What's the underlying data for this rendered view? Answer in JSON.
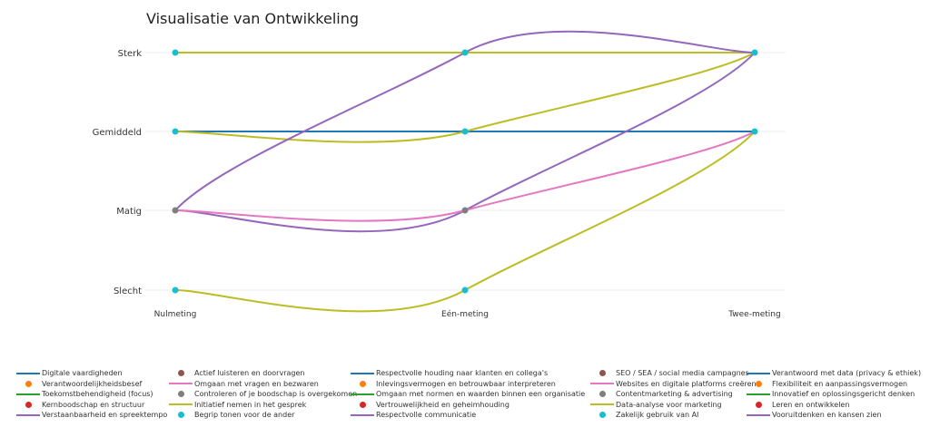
{
  "chart_data": {
    "type": "line",
    "title": "Visualisatie van Ontwikkeling",
    "categories": [
      "Nulmeting",
      "Eén-meting",
      "Twee-meting"
    ],
    "y_levels": [
      "Slecht",
      "Matig",
      "Gemiddeld",
      "Sterk"
    ],
    "grid": true,
    "legend_placement": "bottom",
    "lines": [
      {
        "color": "#1f77b4",
        "values": [
          "Gemiddeld",
          "Gemiddeld",
          "Gemiddeld"
        ]
      },
      {
        "color": "#bcbd22",
        "values": [
          "Sterk",
          "Sterk",
          "Sterk"
        ]
      },
      {
        "color": "#bcbd22",
        "values": [
          "Gemiddeld",
          "Gemiddeld",
          "Sterk"
        ]
      },
      {
        "color": "#bcbd22",
        "values": [
          "Slecht",
          "Slecht",
          "Gemiddeld"
        ]
      },
      {
        "color": "#9467bd",
        "values": [
          "Matig",
          "Sterk",
          "Sterk"
        ]
      },
      {
        "color": "#9467bd",
        "values": [
          "Matig",
          "Matig",
          "Sterk"
        ]
      },
      {
        "color": "#e377c2",
        "values": [
          "Matig",
          "Matig",
          "Gemiddeld"
        ]
      }
    ],
    "markers": [
      {
        "color": "#17becf",
        "x": "Nulmeting",
        "y": "Sterk"
      },
      {
        "color": "#17becf",
        "x": "Nulmeting",
        "y": "Gemiddeld"
      },
      {
        "color": "#7f7f7f",
        "x": "Nulmeting",
        "y": "Matig"
      },
      {
        "color": "#17becf",
        "x": "Nulmeting",
        "y": "Slecht"
      },
      {
        "color": "#17becf",
        "x": "Eén-meting",
        "y": "Sterk"
      },
      {
        "color": "#17becf",
        "x": "Eén-meting",
        "y": "Gemiddeld"
      },
      {
        "color": "#7f7f7f",
        "x": "Eén-meting",
        "y": "Matig"
      },
      {
        "color": "#17becf",
        "x": "Eén-meting",
        "y": "Slecht"
      },
      {
        "color": "#17becf",
        "x": "Twee-meting",
        "y": "Sterk"
      },
      {
        "color": "#17becf",
        "x": "Twee-meting",
        "y": "Gemiddeld"
      }
    ],
    "legend": [
      [
        {
          "label": "Digitale vaardigheden",
          "kind": "line",
          "color": "#1f77b4"
        },
        {
          "label": "Verantwoordelijkheidsbesef",
          "kind": "marker",
          "color": "#ff7f0e"
        },
        {
          "label": "Toekomstbehendigheid (focus)",
          "kind": "line",
          "color": "#2ca02c"
        },
        {
          "label": "Kernboodschap en structuur",
          "kind": "marker",
          "color": "#d62728"
        },
        {
          "label": "Verstaanbaarheid en spreektempo",
          "kind": "line",
          "color": "#9467bd"
        }
      ],
      [
        {
          "label": "Actief luisteren en doorvragen",
          "kind": "marker",
          "color": "#8c564b"
        },
        {
          "label": "Omgaan met vragen en bezwaren",
          "kind": "line",
          "color": "#e377c2"
        },
        {
          "label": "Controleren of je boodschap is overgekomen",
          "kind": "marker",
          "color": "#7f7f7f"
        },
        {
          "label": "Initiatief nemen in het gesprek",
          "kind": "line",
          "color": "#bcbd22"
        },
        {
          "label": "Begrip tonen voor de ander",
          "kind": "marker",
          "color": "#17becf"
        }
      ],
      [
        {
          "label": "Respectvolle houding naar klanten en collega's",
          "kind": "line",
          "color": "#1f77b4"
        },
        {
          "label": "Inlevingsvermogen en betrouwbaar interpreteren",
          "kind": "marker",
          "color": "#ff7f0e"
        },
        {
          "label": "Omgaan met normen en waarden binnen een organisatie",
          "kind": "line",
          "color": "#2ca02c"
        },
        {
          "label": "Vertrouwelijkheid en geheimhouding",
          "kind": "marker",
          "color": "#d62728"
        },
        {
          "label": "Respectvolle communicatie",
          "kind": "line",
          "color": "#9467bd"
        }
      ],
      [
        {
          "label": "SEO / SEA / social media campagnes",
          "kind": "marker",
          "color": "#8c564b"
        },
        {
          "label": "Websites en digitale platforms creëren",
          "kind": "line",
          "color": "#e377c2"
        },
        {
          "label": "Contentmarketing & advertising",
          "kind": "marker",
          "color": "#7f7f7f"
        },
        {
          "label": "Data-analyse voor marketing",
          "kind": "line",
          "color": "#bcbd22"
        },
        {
          "label": "Zakelijk gebruik van AI",
          "kind": "marker",
          "color": "#17becf"
        }
      ],
      [
        {
          "label": "Verantwoord met data (privacy & ethiek)",
          "kind": "line",
          "color": "#1f77b4"
        },
        {
          "label": "Flexibiliteit en aanpassingsvermogen",
          "kind": "marker",
          "color": "#ff7f0e"
        },
        {
          "label": "Innovatief en oplossingsgericht denken",
          "kind": "line",
          "color": "#2ca02c"
        },
        {
          "label": "Leren en ontwikkelen",
          "kind": "marker",
          "color": "#d62728"
        },
        {
          "label": "Vooruitdenken en kansen zien",
          "kind": "line",
          "color": "#9467bd"
        }
      ]
    ]
  }
}
